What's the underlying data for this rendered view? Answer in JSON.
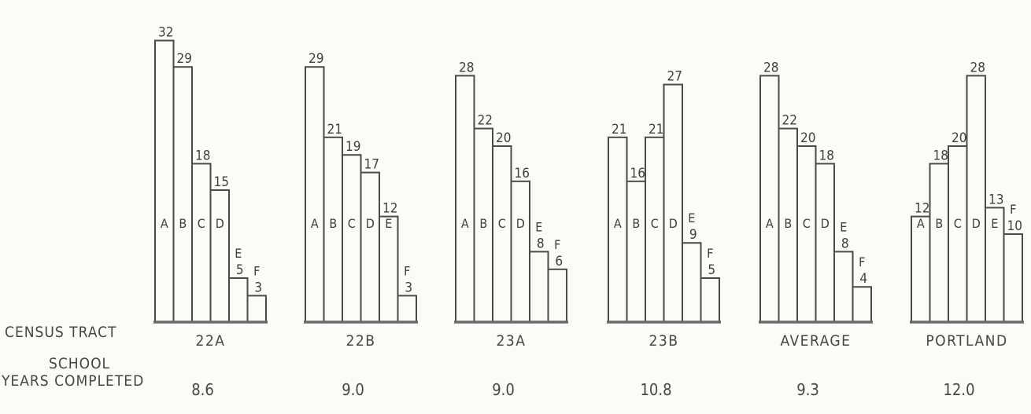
{
  "labels": {
    "census_tract": "CENSUS TRACT",
    "school": "SCHOOL",
    "years_completed": "YEARS COMPLETED"
  },
  "chart_data": [
    {
      "type": "bar",
      "tract": "22A",
      "years_completed": "8.6",
      "categories": [
        "A",
        "B",
        "C",
        "D",
        "E",
        "F"
      ],
      "values": [
        32,
        29,
        18,
        15,
        5,
        3
      ]
    },
    {
      "type": "bar",
      "tract": "22B",
      "years_completed": "9.0",
      "categories": [
        "A",
        "B",
        "C",
        "D",
        "E",
        "F"
      ],
      "values": [
        29,
        21,
        19,
        17,
        12,
        3
      ]
    },
    {
      "type": "bar",
      "tract": "23A",
      "years_completed": "9.0",
      "categories": [
        "A",
        "B",
        "C",
        "D",
        "E",
        "F"
      ],
      "values": [
        28,
        22,
        20,
        16,
        8,
        6
      ]
    },
    {
      "type": "bar",
      "tract": "23B",
      "years_completed": "10.8",
      "categories": [
        "A",
        "B",
        "C",
        "D",
        "E",
        "F"
      ],
      "values": [
        21,
        16,
        21,
        27,
        9,
        5
      ]
    },
    {
      "type": "bar",
      "tract": "AVERAGE",
      "years_completed": "9.3",
      "categories": [
        "A",
        "B",
        "C",
        "D",
        "E",
        "F"
      ],
      "values": [
        28,
        22,
        20,
        18,
        8,
        4
      ]
    },
    {
      "type": "bar",
      "tract": "PORTLAND",
      "years_completed": "12.0",
      "categories": [
        "A",
        "B",
        "C",
        "D",
        "E",
        "F"
      ],
      "values": [
        12,
        18,
        20,
        28,
        13,
        10
      ]
    }
  ]
}
